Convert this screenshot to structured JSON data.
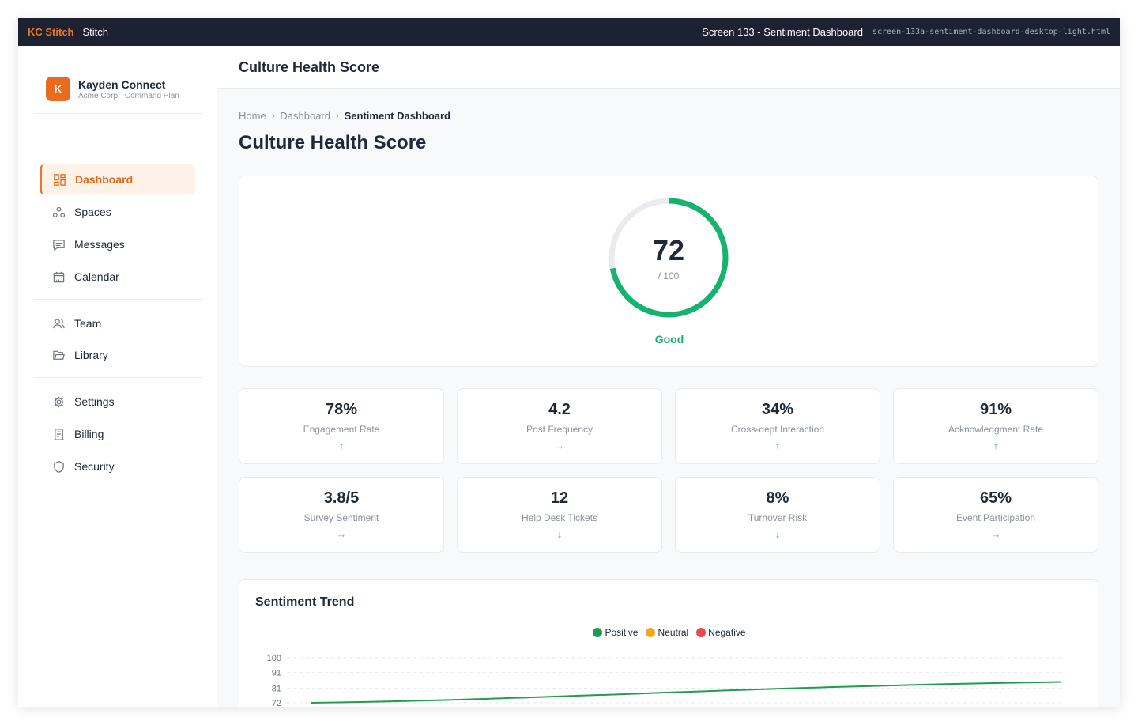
{
  "topbar": {
    "brand": "KC Stitch",
    "app": "Stitch",
    "screen_title": "Screen 133 - Sentiment Dashboard",
    "file_name": "screen-133a-sentiment-dashboard-desktop-light.html"
  },
  "sidebar": {
    "org": {
      "logo_letter": "K",
      "name": "Kayden Connect",
      "plan": "Acme Corp · Command Plan"
    },
    "items": [
      {
        "label": "Dashboard",
        "icon": "dashboard-icon",
        "active": true
      },
      {
        "label": "Spaces",
        "icon": "spaces-icon",
        "active": false
      },
      {
        "label": "Messages",
        "icon": "messages-icon",
        "active": false
      },
      {
        "label": "Calendar",
        "icon": "calendar-icon",
        "active": false
      },
      {
        "label": "Team",
        "icon": "team-icon",
        "active": false
      },
      {
        "label": "Library",
        "icon": "folder-icon",
        "active": false
      },
      {
        "label": "Settings",
        "icon": "gear-icon",
        "active": false
      },
      {
        "label": "Billing",
        "icon": "receipt-icon",
        "active": false
      },
      {
        "label": "Security",
        "icon": "shield-icon",
        "active": false
      }
    ]
  },
  "header": {
    "title": "Culture Health Score"
  },
  "breadcrumb": {
    "items": [
      "Home",
      "Dashboard"
    ],
    "current": "Sentiment Dashboard"
  },
  "page": {
    "title": "Culture Health Score"
  },
  "score": {
    "value": "72",
    "max_label": "/ 100",
    "fraction": 0.72,
    "status": "Good",
    "color": "#16b26f"
  },
  "metrics": [
    {
      "value": "78%",
      "label": "Engagement Rate",
      "trend": "up",
      "symbol": "↑"
    },
    {
      "value": "4.2",
      "label": "Post Frequency",
      "trend": "flat",
      "symbol": "→"
    },
    {
      "value": "34%",
      "label": "Cross-dept Interaction",
      "trend": "up",
      "symbol": "↑"
    },
    {
      "value": "91%",
      "label": "Acknowledgment Rate",
      "trend": "up",
      "symbol": "↑"
    },
    {
      "value": "3.8/5",
      "label": "Survey Sentiment",
      "trend": "flat",
      "symbol": "→"
    },
    {
      "value": "12",
      "label": "Help Desk Tickets",
      "trend": "down",
      "symbol": "↓"
    },
    {
      "value": "8%",
      "label": "Turnover Risk",
      "trend": "down",
      "symbol": "↓"
    },
    {
      "value": "65%",
      "label": "Event Participation",
      "trend": "flat",
      "symbol": "→"
    }
  ],
  "trend_chart": {
    "title": "Sentiment Trend",
    "legend": [
      {
        "name": "Positive",
        "color": "#1f9d4c"
      },
      {
        "name": "Neutral",
        "color": "#f2a81d"
      },
      {
        "name": "Negative",
        "color": "#ee4848"
      }
    ],
    "y_ticks": [
      "100",
      "91",
      "81",
      "72"
    ]
  },
  "chart_data": {
    "type": "line",
    "title": "Sentiment Trend",
    "ylim": [
      72,
      100
    ],
    "y_ticks": [
      100,
      91,
      81,
      72
    ],
    "grid": true,
    "legend_placement": "top-center",
    "series": [
      {
        "name": "Positive",
        "color": "#1f9d4c",
        "start": 72,
        "end": 85
      }
    ]
  }
}
